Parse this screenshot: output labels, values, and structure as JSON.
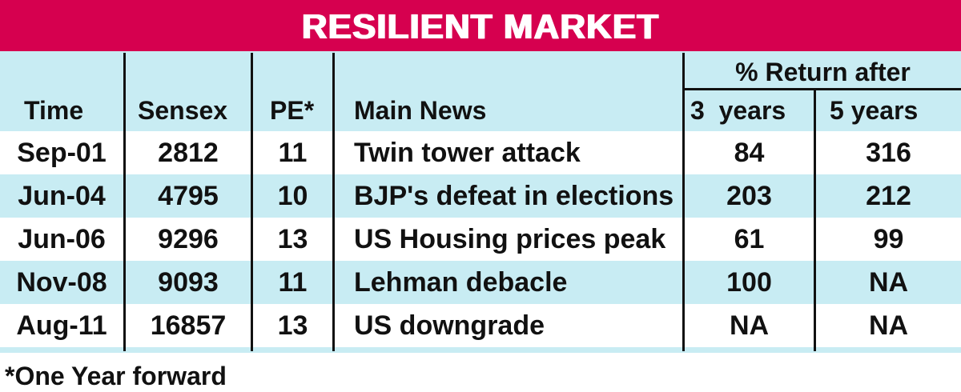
{
  "title": "RESILIENT MARKET",
  "colors": {
    "banner": "#d6004f",
    "row_stripe": "#c8ecf3",
    "row_white": "#ffffff",
    "text": "#111111"
  },
  "table": {
    "group_header": "% Return after",
    "columns": [
      "Time",
      "Sensex",
      "PE*",
      "Main News",
      "3  years",
      "5 years"
    ],
    "rows": [
      {
        "time": "Sep-01",
        "sensex": "2812",
        "pe": "11",
        "news": "Twin tower attack",
        "r3": "84",
        "r5": "316"
      },
      {
        "time": "Jun-04",
        "sensex": "4795",
        "pe": "10",
        "news": "BJP's defeat in elections",
        "r3": "203",
        "r5": "212"
      },
      {
        "time": "Jun-06",
        "sensex": "9296",
        "pe": "13",
        "news": "US Housing prices peak",
        "r3": "61",
        "r5": "99"
      },
      {
        "time": "Nov-08",
        "sensex": "9093",
        "pe": "11",
        "news": "Lehman debacle",
        "r3": "100",
        "r5": "NA"
      },
      {
        "time": "Aug-11",
        "sensex": "16857",
        "pe": "13",
        "news": "US downgrade",
        "r3": "NA",
        "r5": "NA"
      }
    ]
  },
  "footnote": "*One Year forward"
}
